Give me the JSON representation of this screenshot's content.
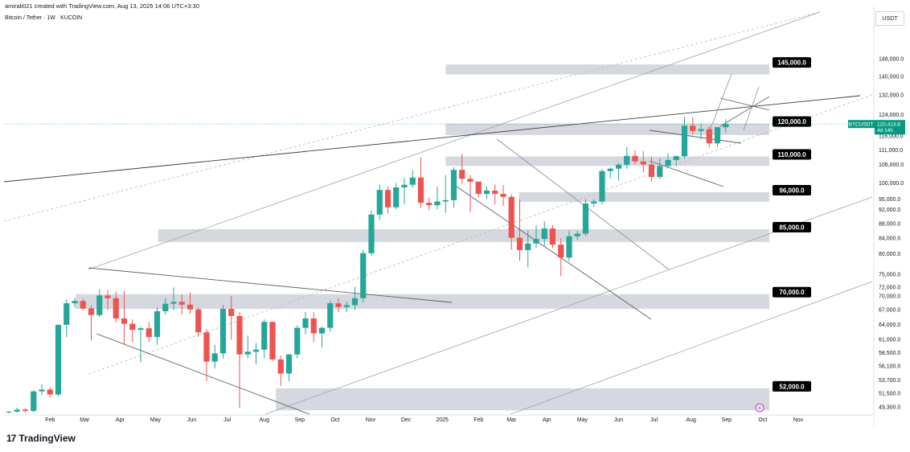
{
  "header": {
    "author_line": "amirali021 created with TradingView.com, Aug 13, 2025 14:06 UTC+3:30",
    "symbol_line": "Bitcoin / Tether · 1W · KUCOIN"
  },
  "currency_button": "USDT",
  "footer": {
    "logo_mark": "17",
    "brand": "TradingView"
  },
  "colors": {
    "up": "#26a69a",
    "down": "#ef5350",
    "zone": "#d1d4dc",
    "label_bg": "#000000",
    "accent": "#089981"
  },
  "chart_data": {
    "type": "candlestick",
    "y_scale": "log",
    "ylim": [
      48200,
      171000
    ],
    "x_tick_labels": [
      "Feb",
      "Mar",
      "Apr",
      "May",
      "Jun",
      "Jul",
      "Aug",
      "Sep",
      "Oct",
      "Nov",
      "Dec",
      "2025",
      "Feb",
      "Mar",
      "Apr",
      "May",
      "Jun",
      "Jul",
      "Aug",
      "Sep",
      "Oct",
      "Nov"
    ],
    "y_tick_labels": [
      148000,
      140000,
      132000,
      124000,
      116000,
      111000,
      106000,
      100000,
      95000,
      92000,
      88000,
      84000,
      80000,
      75000,
      72000,
      70000,
      67000,
      64000,
      61000,
      58500,
      56100,
      53700,
      51500,
      49300
    ],
    "y_tick_text": [
      "148,000.0",
      "140,000.0",
      "132,000.0",
      "124,000.0",
      "116,000.0",
      "111,000.0",
      "106,000.0",
      "100,000.0",
      "95,000.0",
      "92,000.0",
      "88,000.0",
      "84,000.0",
      "80,000.0",
      "75,000.0",
      "72,000.0",
      "70,000.0",
      "67,000.0",
      "64,000.0",
      "61,000.0",
      "58,500.0",
      "56,100.0",
      "53,700.0",
      "51,500.0",
      "49,300.0"
    ],
    "zones": [
      {
        "label": "145,000.0",
        "low": 140800,
        "high": 145300,
        "x_start": "2024-12-16"
      },
      {
        "label": "120,000.0",
        "low": 116300,
        "high": 120600,
        "x_start": "2024-12-16"
      },
      {
        "label": "110,000.0",
        "low": 105500,
        "high": 108700,
        "x_start": "2024-12-16"
      },
      {
        "label": "96,000.0",
        "low": 94200,
        "high": 97100,
        "x_start": "2025-02-17"
      },
      {
        "label": "85,000.0",
        "low": 83000,
        "high": 86400,
        "x_start": "2024-05-20"
      },
      {
        "label": "70,000.0",
        "low": 67200,
        "high": 70400,
        "x_start": "2024-03-11"
      },
      {
        "label": "52,000.0",
        "low": 48800,
        "high": 52300,
        "x_start": "2024-08-05"
      }
    ],
    "last_price": {
      "symbol": "BTCUSDT",
      "price": "120,413.8",
      "countdown": "4d 14h",
      "value": 120413.8
    },
    "candles": [
      {
        "o": 48500,
        "h": 48700,
        "l": 48300,
        "c": 48600
      },
      {
        "o": 48600,
        "h": 49200,
        "l": 48400,
        "c": 48900
      },
      {
        "o": 48900,
        "h": 49100,
        "l": 48500,
        "c": 48700
      },
      {
        "o": 48700,
        "h": 52000,
        "l": 48500,
        "c": 51800
      },
      {
        "o": 51800,
        "h": 53000,
        "l": 51200,
        "c": 52100
      },
      {
        "o": 52100,
        "h": 52500,
        "l": 50800,
        "c": 51300
      },
      {
        "o": 51300,
        "h": 64000,
        "l": 51000,
        "c": 63900
      },
      {
        "o": 63900,
        "h": 69200,
        "l": 61500,
        "c": 68400
      },
      {
        "o": 68400,
        "h": 69500,
        "l": 67500,
        "c": 68900
      },
      {
        "o": 68900,
        "h": 69400,
        "l": 66900,
        "c": 67300
      },
      {
        "o": 67300,
        "h": 68000,
        "l": 60800,
        "c": 65900
      },
      {
        "o": 65900,
        "h": 71500,
        "l": 65500,
        "c": 70100
      },
      {
        "o": 70100,
        "h": 71300,
        "l": 66900,
        "c": 69500
      },
      {
        "o": 69500,
        "h": 71000,
        "l": 64400,
        "c": 65200
      },
      {
        "o": 65200,
        "h": 71100,
        "l": 60000,
        "c": 64100
      },
      {
        "o": 64100,
        "h": 65000,
        "l": 60500,
        "c": 62900
      },
      {
        "o": 62900,
        "h": 63500,
        "l": 56800,
        "c": 63200
      },
      {
        "o": 63200,
        "h": 64500,
        "l": 60500,
        "c": 61500
      },
      {
        "o": 61500,
        "h": 67500,
        "l": 60000,
        "c": 66700
      },
      {
        "o": 66700,
        "h": 69500,
        "l": 66000,
        "c": 68300
      },
      {
        "o": 68300,
        "h": 71900,
        "l": 67000,
        "c": 68700
      },
      {
        "o": 68700,
        "h": 70300,
        "l": 66000,
        "c": 68100
      },
      {
        "o": 68100,
        "h": 70700,
        "l": 66200,
        "c": 67100
      },
      {
        "o": 67100,
        "h": 67500,
        "l": 61500,
        "c": 62400
      },
      {
        "o": 62400,
        "h": 63000,
        "l": 53500,
        "c": 56900
      },
      {
        "o": 56900,
        "h": 60000,
        "l": 55700,
        "c": 58400
      },
      {
        "o": 58400,
        "h": 68000,
        "l": 57500,
        "c": 67200
      },
      {
        "o": 67200,
        "h": 70000,
        "l": 61000,
        "c": 65700
      },
      {
        "o": 65700,
        "h": 66500,
        "l": 49200,
        "c": 58200
      },
      {
        "o": 58200,
        "h": 61800,
        "l": 57500,
        "c": 58700
      },
      {
        "o": 58700,
        "h": 60300,
        "l": 56400,
        "c": 59100
      },
      {
        "o": 59100,
        "h": 65000,
        "l": 57500,
        "c": 64500
      },
      {
        "o": 64500,
        "h": 64500,
        "l": 57000,
        "c": 57300
      },
      {
        "o": 57300,
        "h": 58000,
        "l": 52700,
        "c": 54800
      },
      {
        "o": 54800,
        "h": 58300,
        "l": 53500,
        "c": 58200
      },
      {
        "o": 58200,
        "h": 63800,
        "l": 57500,
        "c": 63300
      },
      {
        "o": 63300,
        "h": 66500,
        "l": 62000,
        "c": 65200
      },
      {
        "o": 65200,
        "h": 66500,
        "l": 60500,
        "c": 62200
      },
      {
        "o": 62200,
        "h": 63500,
        "l": 59500,
        "c": 63300
      },
      {
        "o": 63300,
        "h": 69000,
        "l": 62500,
        "c": 68400
      },
      {
        "o": 68400,
        "h": 69500,
        "l": 66500,
        "c": 67600
      },
      {
        "o": 67600,
        "h": 68800,
        "l": 66500,
        "c": 68000
      },
      {
        "o": 68000,
        "h": 72000,
        "l": 67000,
        "c": 69500
      },
      {
        "o": 69500,
        "h": 81000,
        "l": 68500,
        "c": 80100
      },
      {
        "o": 80100,
        "h": 91700,
        "l": 79500,
        "c": 90500
      },
      {
        "o": 90500,
        "h": 99500,
        "l": 89000,
        "c": 97800
      },
      {
        "o": 97800,
        "h": 98900,
        "l": 90800,
        "c": 92600
      },
      {
        "o": 92600,
        "h": 100000,
        "l": 92000,
        "c": 98600
      },
      {
        "o": 98600,
        "h": 101500,
        "l": 93500,
        "c": 99400
      },
      {
        "o": 99400,
        "h": 104100,
        "l": 98500,
        "c": 101700
      },
      {
        "o": 101700,
        "h": 108300,
        "l": 92400,
        "c": 93900
      },
      {
        "o": 93900,
        "h": 95500,
        "l": 91700,
        "c": 93200
      },
      {
        "o": 93200,
        "h": 98800,
        "l": 92000,
        "c": 94300
      },
      {
        "o": 94300,
        "h": 102500,
        "l": 91000,
        "c": 94700
      },
      {
        "o": 94700,
        "h": 105000,
        "l": 92500,
        "c": 104200
      },
      {
        "o": 104200,
        "h": 109500,
        "l": 99800,
        "c": 101300
      },
      {
        "o": 101300,
        "h": 102500,
        "l": 91200,
        "c": 100400
      },
      {
        "o": 100400,
        "h": 100500,
        "l": 95600,
        "c": 96600
      },
      {
        "o": 96600,
        "h": 98900,
        "l": 95000,
        "c": 97600
      },
      {
        "o": 97600,
        "h": 99500,
        "l": 93400,
        "c": 96600
      },
      {
        "o": 96600,
        "h": 99300,
        "l": 93000,
        "c": 95700
      },
      {
        "o": 95700,
        "h": 96500,
        "l": 81000,
        "c": 84100
      },
      {
        "o": 84100,
        "h": 95000,
        "l": 78200,
        "c": 80900
      },
      {
        "o": 80900,
        "h": 86000,
        "l": 76600,
        "c": 82600
      },
      {
        "o": 82600,
        "h": 87500,
        "l": 81500,
        "c": 83800
      },
      {
        "o": 83800,
        "h": 88600,
        "l": 82000,
        "c": 86600
      },
      {
        "o": 86600,
        "h": 87500,
        "l": 81500,
        "c": 82300
      },
      {
        "o": 82300,
        "h": 84000,
        "l": 74500,
        "c": 79000
      },
      {
        "o": 79000,
        "h": 86000,
        "l": 78000,
        "c": 84500
      },
      {
        "o": 84500,
        "h": 86000,
        "l": 83500,
        "c": 85200
      },
      {
        "o": 85200,
        "h": 95000,
        "l": 84600,
        "c": 93700
      },
      {
        "o": 93700,
        "h": 95000,
        "l": 92700,
        "c": 94300
      },
      {
        "o": 94300,
        "h": 104500,
        "l": 93500,
        "c": 103800
      },
      {
        "o": 103800,
        "h": 105000,
        "l": 101500,
        "c": 104600
      },
      {
        "o": 104600,
        "h": 106500,
        "l": 100700,
        "c": 105900
      },
      {
        "o": 105900,
        "h": 111900,
        "l": 104600,
        "c": 108900
      },
      {
        "o": 108900,
        "h": 110800,
        "l": 106000,
        "c": 107000
      },
      {
        "o": 107000,
        "h": 110600,
        "l": 103400,
        "c": 106000
      },
      {
        "o": 106000,
        "h": 108500,
        "l": 100400,
        "c": 101900
      },
      {
        "o": 101900,
        "h": 108000,
        "l": 101200,
        "c": 105500
      },
      {
        "o": 105500,
        "h": 109700,
        "l": 105000,
        "c": 107500
      },
      {
        "o": 107500,
        "h": 109000,
        "l": 105500,
        "c": 108800
      },
      {
        "o": 108800,
        "h": 123200,
        "l": 108000,
        "c": 119800
      },
      {
        "o": 119800,
        "h": 123000,
        "l": 116500,
        "c": 117800
      },
      {
        "o": 117800,
        "h": 120500,
        "l": 114700,
        "c": 118500
      },
      {
        "o": 118500,
        "h": 119500,
        "l": 111900,
        "c": 113300
      },
      {
        "o": 113300,
        "h": 119300,
        "l": 112000,
        "c": 119200
      },
      {
        "o": 119200,
        "h": 122300,
        "l": 117000,
        "c": 120400
      }
    ]
  }
}
